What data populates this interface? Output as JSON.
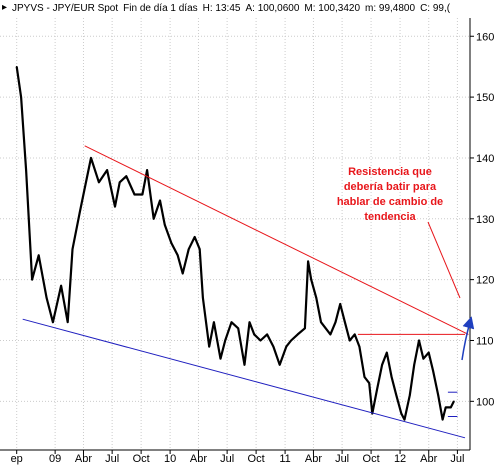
{
  "header": {
    "symbol": "JPYVS - JPY/EUR Spot",
    "period": "Fin de día 1 días",
    "high": "H: 13:45",
    "a": "A: 100,0600",
    "m1": "M: 100,3420",
    "m2": "m: 99,4800",
    "close": "C: 99,("
  },
  "colors": {
    "price": "#000000",
    "resistance": "#e8161b",
    "support": "#1f1fbf",
    "arrow": "#1f3fbf",
    "grid": "#cccccc",
    "background": "#ffffff"
  },
  "annotation": {
    "lines": [
      "Resistencia que",
      "debería batir para",
      "hablar de cambio de",
      "tendencia"
    ]
  },
  "chart_data": {
    "type": "line",
    "title": "",
    "xlabel": "",
    "ylabel": "",
    "ylim": [
      92,
      163
    ],
    "y_axis_side": "right",
    "grid": true,
    "yticks": [
      100,
      110,
      120,
      130,
      140,
      150,
      160
    ],
    "x_tick_labels": [
      "ep",
      "09",
      "Abr",
      "Jul",
      "Oct",
      "10",
      "Abr",
      "Jul",
      "Oct",
      "11",
      "Abr",
      "Jul",
      "Oct",
      "12",
      "Abr",
      "Jul"
    ],
    "x_tick_dates": [
      "2008-09",
      "2009-01",
      "2009-04",
      "2009-07",
      "2009-10",
      "2010-01",
      "2010-04",
      "2010-07",
      "2010-10",
      "2011-01",
      "2011-04",
      "2011-07",
      "2011-10",
      "2012-01",
      "2012-04",
      "2012-07"
    ],
    "series": [
      {
        "type": "line",
        "points": [
          [
            "2008-09-01",
            155
          ],
          [
            "2008-09-15",
            150
          ],
          [
            "2008-10-01",
            138
          ],
          [
            "2008-10-20",
            120
          ],
          [
            "2008-11-10",
            124
          ],
          [
            "2008-12-05",
            117
          ],
          [
            "2008-12-25",
            113
          ],
          [
            "2009-01-20",
            119
          ],
          [
            "2009-02-10",
            113
          ],
          [
            "2009-02-25",
            125
          ],
          [
            "2009-03-20",
            131
          ],
          [
            "2009-04-05",
            135
          ],
          [
            "2009-04-25",
            140
          ],
          [
            "2009-05-20",
            136
          ],
          [
            "2009-06-15",
            138
          ],
          [
            "2009-07-10",
            132
          ],
          [
            "2009-07-25",
            136
          ],
          [
            "2009-08-15",
            137
          ],
          [
            "2009-09-10",
            134
          ],
          [
            "2009-10-05",
            134
          ],
          [
            "2009-10-20",
            138
          ],
          [
            "2009-11-10",
            130
          ],
          [
            "2009-11-30",
            133
          ],
          [
            "2009-12-15",
            129
          ],
          [
            "2010-01-05",
            126
          ],
          [
            "2010-01-25",
            124
          ],
          [
            "2010-02-10",
            121
          ],
          [
            "2010-03-01",
            125
          ],
          [
            "2010-03-20",
            127
          ],
          [
            "2010-04-05",
            125
          ],
          [
            "2010-04-15",
            117
          ],
          [
            "2010-05-05",
            109
          ],
          [
            "2010-05-20",
            113
          ],
          [
            "2010-06-10",
            107
          ],
          [
            "2010-06-25",
            110
          ],
          [
            "2010-07-15",
            113
          ],
          [
            "2010-08-05",
            112
          ],
          [
            "2010-08-25",
            106
          ],
          [
            "2010-09-10",
            113
          ],
          [
            "2010-09-25",
            111
          ],
          [
            "2010-10-15",
            110
          ],
          [
            "2010-11-05",
            111
          ],
          [
            "2010-11-25",
            109
          ],
          [
            "2010-12-15",
            106
          ],
          [
            "2011-01-05",
            109
          ],
          [
            "2011-01-20",
            110
          ],
          [
            "2011-02-10",
            111
          ],
          [
            "2011-03-05",
            112
          ],
          [
            "2011-03-15",
            123
          ],
          [
            "2011-03-25",
            120
          ],
          [
            "2011-04-10",
            117
          ],
          [
            "2011-04-25",
            113
          ],
          [
            "2011-05-10",
            112
          ],
          [
            "2011-05-25",
            111
          ],
          [
            "2011-06-10",
            113
          ],
          [
            "2011-06-25",
            116
          ],
          [
            "2011-07-10",
            113
          ],
          [
            "2011-07-25",
            110
          ],
          [
            "2011-08-10",
            111
          ],
          [
            "2011-08-25",
            109
          ],
          [
            "2011-09-10",
            104
          ],
          [
            "2011-09-25",
            103
          ],
          [
            "2011-10-05",
            98
          ],
          [
            "2011-10-20",
            102
          ],
          [
            "2011-11-05",
            106
          ],
          [
            "2011-11-20",
            108
          ],
          [
            "2011-12-05",
            104
          ],
          [
            "2011-12-20",
            101
          ],
          [
            "2012-01-05",
            98
          ],
          [
            "2012-01-15",
            97
          ],
          [
            "2012-02-01",
            101
          ],
          [
            "2012-02-15",
            106
          ],
          [
            "2012-03-01",
            110
          ],
          [
            "2012-03-15",
            107
          ],
          [
            "2012-04-01",
            108
          ],
          [
            "2012-04-15",
            105
          ],
          [
            "2012-05-01",
            101
          ],
          [
            "2012-05-15",
            97
          ],
          [
            "2012-05-25",
            99
          ],
          [
            "2012-06-10",
            99
          ],
          [
            "2012-06-20",
            100
          ]
        ]
      }
    ],
    "lines": [
      {
        "role": "resistance-trend",
        "from": [
          "2009-04-05",
          142
        ],
        "to": [
          "2012-08-05",
          111
        ]
      },
      {
        "role": "support-trend",
        "from": [
          "2008-09-20",
          113.5
        ],
        "to": [
          "2012-07-25",
          94
        ]
      },
      {
        "role": "resistance-level",
        "from": [
          "2011-08-20",
          111
        ],
        "to": [
          "2012-07-25",
          111
        ]
      },
      {
        "role": "range-low",
        "from": [
          "2012-06-01",
          97.5
        ],
        "to": [
          "2012-07-01",
          97.5
        ]
      },
      {
        "role": "range-high",
        "from": [
          "2012-06-01",
          101.5
        ],
        "to": [
          "2012-07-01",
          101.5
        ]
      }
    ]
  }
}
